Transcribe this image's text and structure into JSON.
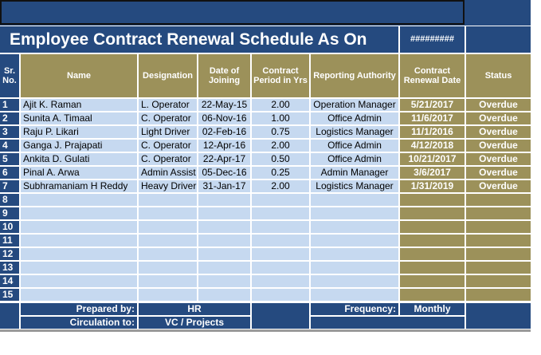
{
  "title": "Employee Contract Renewal Schedule As On",
  "date": "#########",
  "table": {
    "headers": [
      "Sr. No.",
      "Name",
      "Designation",
      "Date of Joining",
      "Contract Period in Yrs",
      "Reporting Authority",
      "Contract Renewal Date",
      "Status"
    ],
    "rows": [
      [
        "1",
        "Ajit K. Raman",
        "L. Operator",
        "22-May-15",
        "2.00",
        "Operation Manager",
        "5/21/2017",
        "Overdue"
      ],
      [
        "2",
        "Sunita A. Timaal",
        "C. Operator",
        "06-Nov-16",
        "1.00",
        "Office Admin",
        "11/6/2017",
        "Overdue"
      ],
      [
        "3",
        "Raju P. Likari",
        "Light Driver",
        "02-Feb-16",
        "0.75",
        "Logistics Manager",
        "11/1/2016",
        "Overdue"
      ],
      [
        "4",
        "Ganga J. Prajapati",
        "C. Operator",
        "12-Apr-16",
        "2.00",
        "Office Admin",
        "4/12/2018",
        "Overdue"
      ],
      [
        "5",
        "Ankita D. Gulati",
        "C. Operator",
        "22-Apr-17",
        "0.50",
        "Office Admin",
        "10/21/2017",
        "Overdue"
      ],
      [
        "6",
        "Pinal A. Arwa",
        "Admin Assist",
        "05-Dec-16",
        "0.25",
        "Admin Manager",
        "3/6/2017",
        "Overdue"
      ],
      [
        "7",
        "Subhramaniam H Reddy",
        "Heavy Driver",
        "31-Jan-17",
        "2.00",
        "Logistics Manager",
        "1/31/2019",
        "Overdue"
      ],
      [
        "8"
      ],
      [
        "9"
      ],
      [
        "10"
      ],
      [
        "11"
      ],
      [
        "12"
      ],
      [
        "13"
      ],
      [
        "14"
      ],
      [
        "15"
      ]
    ]
  },
  "footer": {
    "prepared_by_label": "Prepared by:",
    "prepared_by": "HR",
    "frequency_label": "Frequency:",
    "frequency": "Monthly",
    "circulation_label": "Circulation to:",
    "circulation": "VC / Projects"
  }
}
